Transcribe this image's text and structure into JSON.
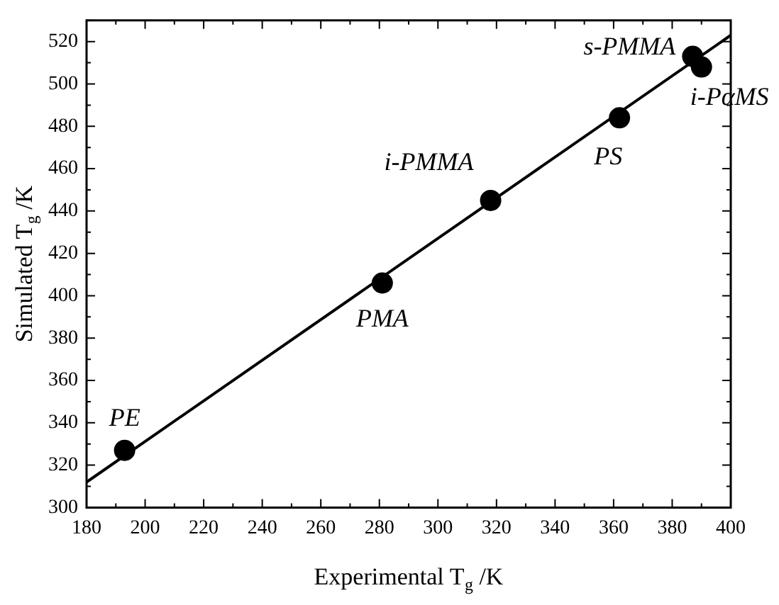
{
  "chart_data": {
    "type": "scatter",
    "xlabel": "Experimental T$_{g}$ /K",
    "ylabel": "Simulated T$_{g}$ /K",
    "xlim": [
      180,
      400
    ],
    "ylim": [
      300,
      530
    ],
    "xticks": [
      180,
      {
        "value": 190,
        "label": null
      },
      200,
      {
        "value": 210,
        "label": null
      },
      220,
      {
        "value": 230,
        "label": null
      },
      240,
      {
        "value": 250,
        "label": null
      },
      260,
      {
        "value": 270,
        "label": null
      },
      280,
      {
        "value": 290,
        "label": null
      },
      300,
      {
        "value": 310,
        "label": null
      },
      320,
      {
        "value": 330,
        "label": null
      },
      340,
      {
        "value": 350,
        "label": null
      },
      360,
      {
        "value": 370,
        "label": null
      },
      380,
      {
        "value": 390,
        "label": null
      },
      400
    ],
    "yticks": [
      300,
      {
        "value": 310,
        "label": null
      },
      320,
      {
        "value": 330,
        "label": null
      },
      340,
      {
        "value": 350,
        "label": null
      },
      360,
      {
        "value": 370,
        "label": null
      },
      380,
      {
        "value": 390,
        "label": null
      },
      400,
      {
        "value": 410,
        "label": null
      },
      420,
      {
        "value": 430,
        "label": null
      },
      440,
      {
        "value": 450,
        "label": null
      },
      460,
      {
        "value": 470,
        "label": null
      },
      480,
      {
        "value": 490,
        "label": null
      },
      500,
      {
        "value": 510,
        "label": null
      },
      520,
      {
        "value": 530,
        "label": null
      }
    ],
    "grid": false,
    "legend": false,
    "marker": "circle",
    "series": [
      {
        "type": "scatter",
        "color": "#000000",
        "x": [
          193,
          281,
          318,
          362,
          387,
          390
        ],
        "values": [
          327,
          406,
          445,
          484,
          513,
          508
        ]
      },
      {
        "type": "line",
        "color": "#000000",
        "marker": "none",
        "x": [
          180,
          400
        ],
        "values": [
          312,
          523
        ]
      }
    ],
    "annotations": [
      {
        "text": "PE",
        "x": 193,
        "y": 327
      },
      {
        "text": "PMA",
        "x": 281,
        "y": 406
      },
      {
        "text": "i-PMMA",
        "x": 318,
        "y": 445
      },
      {
        "text": "PS",
        "x": 362,
        "y": 484
      },
      {
        "text": "s-PMMA",
        "x": 387,
        "y": 513
      },
      {
        "text": "i-PαMS",
        "x": 390,
        "y": 508
      }
    ]
  }
}
